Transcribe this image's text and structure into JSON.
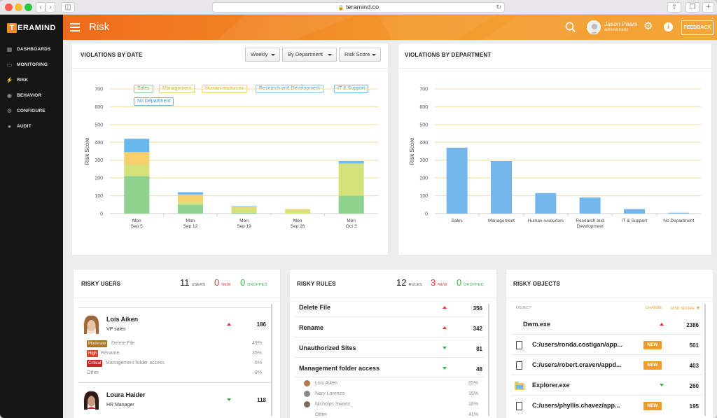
{
  "browser": {
    "url": "teramind.co"
  },
  "logo": {
    "mark": "T",
    "rest": "ERAMIND"
  },
  "sidebar": {
    "items": [
      {
        "label": "DASHBOARDS"
      },
      {
        "label": "MONITORING"
      },
      {
        "label": "RISK"
      },
      {
        "label": "BEHAVIOR"
      },
      {
        "label": "CONFIGURE"
      },
      {
        "label": "AUDIT"
      }
    ]
  },
  "header": {
    "title": "Risk",
    "user_name": "Jason Pears",
    "user_role": "administrator",
    "feedback_label": "FEEDBACK",
    "info_glyph": "i"
  },
  "violations_by_date": {
    "title": "VIOLATIONS BY DATE",
    "filters": [
      "Weekly",
      "By Department",
      "Risk Score"
    ]
  },
  "violations_by_department": {
    "title": "VIOLATIONS BY DEPARTMENT"
  },
  "colors": {
    "sales": "#8fd18f",
    "management": "#d5e27a",
    "human_resources": "#f6d16b",
    "research_and_development": "#8cc6ee",
    "it_support": "#69b8ee",
    "no_department": "#c9c9c9",
    "accent": "#f39a2c"
  },
  "chart_data": [
    {
      "type": "bar",
      "stacked": true,
      "title": "VIOLATIONS BY DATE",
      "ylabel": "Risk Score",
      "ylim": [
        0,
        700
      ],
      "yticks": [
        0,
        100,
        200,
        300,
        400,
        500,
        600,
        700
      ],
      "categories": [
        "Mon Sep 5",
        "Mon Sep 12",
        "Mon Sep 19",
        "Mon Sep 26",
        "Mon Oct 3"
      ],
      "categories_lines": [
        [
          "Mon",
          "Sep 5"
        ],
        [
          "Mon",
          "Sep 12"
        ],
        [
          "Mon",
          "Sep 19"
        ],
        [
          "Mon",
          "Sep 26"
        ],
        [
          "Mon",
          "Oct 3"
        ]
      ],
      "legend": [
        "Sales",
        "Management",
        "Human resources",
        "Research and Development",
        "IT & Support",
        "No Department"
      ],
      "series": [
        {
          "name": "Sales",
          "values": [
            210,
            50,
            5,
            0,
            100
          ]
        },
        {
          "name": "Management",
          "values": [
            65,
            15,
            25,
            20,
            180
          ]
        },
        {
          "name": "Human resources",
          "values": [
            70,
            40,
            10,
            5,
            0
          ]
        },
        {
          "name": "Research and Development",
          "values": [
            0,
            5,
            0,
            0,
            5
          ]
        },
        {
          "name": "IT & Support",
          "values": [
            75,
            10,
            2,
            0,
            10
          ]
        },
        {
          "name": "No Department",
          "values": [
            0,
            0,
            0,
            0,
            0
          ]
        }
      ]
    },
    {
      "type": "bar",
      "title": "VIOLATIONS BY DEPARTMENT",
      "ylabel": "Risk Score",
      "ylim": [
        0,
        700
      ],
      "yticks": [
        0,
        100,
        200,
        300,
        400,
        500,
        600,
        700
      ],
      "categories": [
        "Sales",
        "Management",
        "Human resources",
        "Research and Development",
        "IT & Support",
        "No Department"
      ],
      "categories_lines": [
        [
          "Sales"
        ],
        [
          "Management"
        ],
        [
          "Human resources"
        ],
        [
          "Research and",
          "Development"
        ],
        [
          "IT & Support"
        ],
        [
          "No Department"
        ]
      ],
      "values": [
        370,
        295,
        115,
        90,
        25,
        5
      ]
    }
  ],
  "risky_users": {
    "title": "RISKY USERS",
    "users_count": "11",
    "users_label": "USERS",
    "new_count": "0",
    "new_label": "NEW",
    "dropped_count": "0",
    "dropped_label": "DROPPED",
    "list": [
      {
        "name": "Lois Aiken",
        "role": "VP sales",
        "score": "186",
        "trend": "up",
        "activities": [
          {
            "level": "Moderate",
            "color": "#a8741d",
            "label": "Delete File",
            "pct": "49%"
          },
          {
            "level": "High",
            "color": "#d0472e",
            "label": "Rename",
            "pct": "35%"
          },
          {
            "level": "Critical",
            "color": "#c9262c",
            "label": "Management folder access",
            "pct": "6%"
          }
        ],
        "other_label": "Other",
        "other_pct": "8%"
      },
      {
        "name": "Loura Haider",
        "role": "HR Manager",
        "score": "118",
        "trend": "down"
      }
    ]
  },
  "risky_rules": {
    "title": "RISKY RULES",
    "rules_count": "12",
    "rules_label": "RULES",
    "new_count": "3",
    "new_label": "NEW",
    "dropped_count": "0",
    "dropped_label": "DROPPED",
    "list": [
      {
        "name": "Delete File",
        "score": "356",
        "trend": "up"
      },
      {
        "name": "Rename",
        "score": "342",
        "trend": "up"
      },
      {
        "name": "Unauthorized Sites",
        "score": "81",
        "trend": "down"
      },
      {
        "name": "Management folder access",
        "score": "48",
        "trend": "down"
      }
    ],
    "sub": [
      {
        "name": "Lois Aiken",
        "pct": "25%"
      },
      {
        "name": "Nery Lorenzo",
        "pct": "16%"
      },
      {
        "name": "Nicholas Swartz",
        "pct": "16%"
      },
      {
        "name": "Other",
        "pct": "41%"
      }
    ]
  },
  "risky_objects": {
    "title": "RISKY OBJECTS",
    "col_object": "OBJECT",
    "col_change": "CHANGE",
    "col_score": "RISK SCORE",
    "list": [
      {
        "name": "Dwm.exe",
        "score": "2386",
        "trend": "up",
        "is_new": false,
        "icon": "none"
      },
      {
        "name": "C:/users/ronda.costigan/app...",
        "score": "501",
        "is_new": true,
        "icon": "file-icon"
      },
      {
        "name": "C:/users/robert.craven/appd...",
        "score": "403",
        "is_new": true,
        "icon": "file-icon"
      },
      {
        "name": "Explorer.exe",
        "score": "260",
        "trend": "down",
        "is_new": false,
        "icon": "folder-icon"
      },
      {
        "name": "C:/users/phyllis.chavez/app...",
        "score": "195",
        "is_new": true,
        "icon": "file-icon"
      }
    ],
    "new_label": "NEW"
  }
}
